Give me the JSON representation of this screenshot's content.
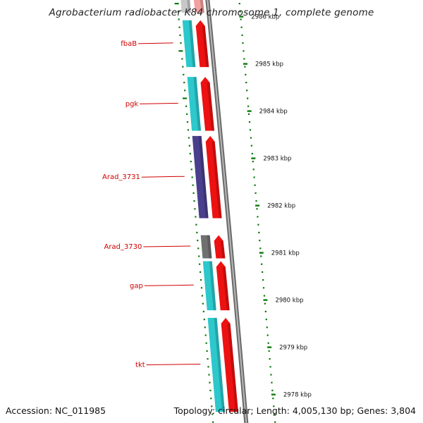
{
  "title": "Agrobacterium radiobacter K84 chromosome 1, complete genome",
  "footer": {
    "accession": "Accession: NC_011985",
    "summary": "Topology: circular; Length: 4,005,130 bp; Genes: 3,804"
  },
  "colors": {
    "cds_cyan": "#2cc8cc",
    "cds_navy": "#4a3f8c",
    "cds_gray": "#707070",
    "gene_red": "#ee1111",
    "label_red": "#d00000",
    "tick_green": "#0a7a0a",
    "backbone_gray": "#8a8a8a"
  },
  "chart_data": {
    "type": "genome-map",
    "axis_unit": "kbp",
    "visible_range_kbp": [
      2977.8,
      2986.4
    ],
    "scale_ticks": [
      {
        "kbp": 2986,
        "label": "2986 kbp"
      },
      {
        "kbp": 2985,
        "label": "2985 kbp"
      },
      {
        "kbp": 2984,
        "label": "2984 kbp"
      },
      {
        "kbp": 2983,
        "label": "2983 kbp"
      },
      {
        "kbp": 2982,
        "label": "2982 kbp"
      },
      {
        "kbp": 2981,
        "label": "2981 kbp"
      },
      {
        "kbp": 2980,
        "label": "2980 kbp"
      },
      {
        "kbp": 2979,
        "label": "2979 kbp"
      },
      {
        "kbp": 2978,
        "label": "2978 kbp"
      }
    ],
    "features": [
      {
        "name": "",
        "start_kbp": 2986.05,
        "end_kbp": 2986.6,
        "cds_color": "#c8c8c8",
        "gene_color": "#f4a0a0"
      },
      {
        "name": "fbaB",
        "start_kbp": 2984.9,
        "end_kbp": 2985.95,
        "cds_color": "#2cc8cc",
        "gene_color": "#ee1111"
      },
      {
        "name": "pgk",
        "start_kbp": 2983.55,
        "end_kbp": 2984.75,
        "cds_color": "#2cc8cc",
        "gene_color": "#ee1111"
      },
      {
        "name": "Arad_3731",
        "start_kbp": 2981.7,
        "end_kbp": 2983.5,
        "cds_color": "#4a3f8c",
        "gene_color": "#ee1111"
      },
      {
        "name": "Arad_3730",
        "start_kbp": 2980.85,
        "end_kbp": 2981.4,
        "cds_color": "#707070",
        "gene_color": "#ee1111"
      },
      {
        "name": "gap",
        "start_kbp": 2979.75,
        "end_kbp": 2980.85,
        "cds_color": "#2cc8cc",
        "gene_color": "#ee1111"
      },
      {
        "name": "tkt",
        "start_kbp": 2977.6,
        "end_kbp": 2979.65,
        "cds_color": "#2cc8cc",
        "gene_color": "#ee1111"
      }
    ]
  }
}
